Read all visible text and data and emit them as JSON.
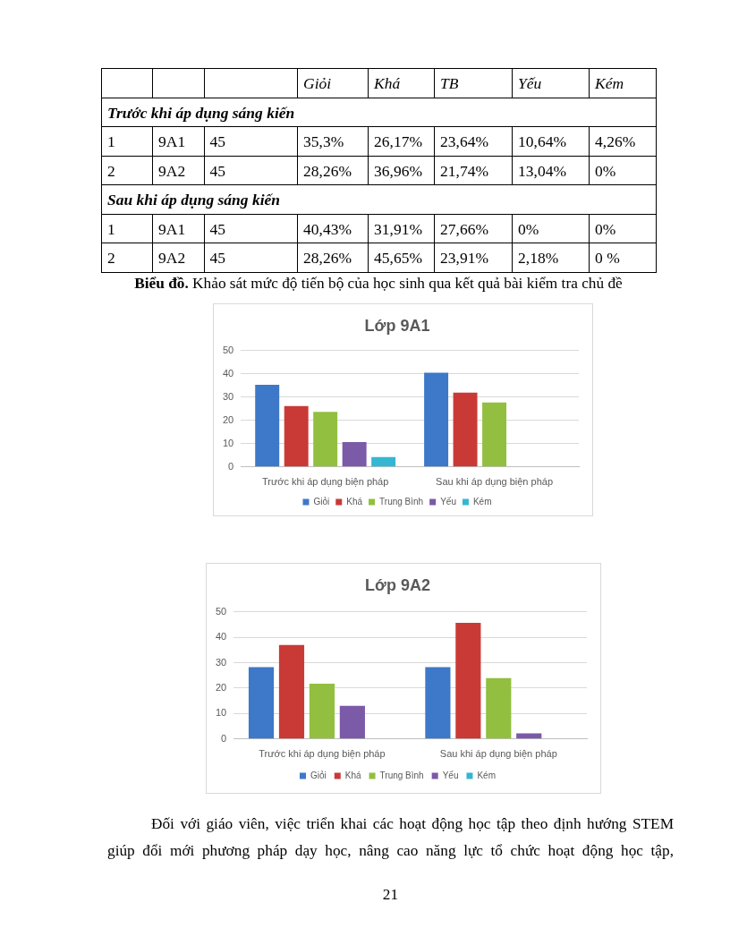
{
  "chart_data": [
    {
      "type": "other",
      "categories": [
        null,
        null,
        null,
        "Giỏi",
        "Khá",
        "TB",
        "Yếu",
        "Kém"
      ],
      "cell_labels": [
        [
          "Trước khi áp dụng sáng kiến",
          null,
          null,
          null,
          null,
          null,
          null,
          null
        ],
        [
          "1",
          "9A1",
          "45",
          "35,3%",
          "26,17%",
          "23,64%",
          "10,64%",
          "4,26%"
        ],
        [
          "2",
          "9A2",
          "45",
          "28,26%",
          "36,96%",
          "21,74%",
          "13,04%",
          "0%"
        ],
        [
          "Sau khi áp dụng sáng kiến",
          null,
          null,
          null,
          null,
          null,
          null,
          null
        ],
        [
          "1",
          "9A1",
          "45",
          "40,43%",
          "31,91%",
          "27,66%",
          "0%",
          "0%"
        ],
        [
          "2",
          "9A2",
          "45",
          "28,26%",
          "45,65%",
          "23,91%",
          "2,18%",
          "0 %"
        ]
      ],
      "annotations": [
        "Biểu đồ. Khảo sát mức độ tiến bộ của học sinh qua kết quả bài kiểm tra chủ đề"
      ]
    },
    {
      "type": "bar",
      "title": "Lớp 9A1",
      "categories": [
        "Trước khi áp dụng biện pháp",
        "Sau khi áp dụng biện pháp"
      ],
      "series": [
        {
          "name": "Giỏi",
          "color": "#3d78c9",
          "values": [
            35.3,
            40.43
          ]
        },
        {
          "name": "Khá",
          "color": "#c93a36",
          "values": [
            26.17,
            31.91
          ]
        },
        {
          "name": "Trung Bình",
          "color": "#92bf3f",
          "values": [
            23.64,
            27.66
          ]
        },
        {
          "name": "Yếu",
          "color": "#7b5aa8",
          "values": [
            10.64,
            0
          ]
        },
        {
          "name": "Kém",
          "color": "#35b6d1",
          "values": [
            4.26,
            0
          ]
        }
      ],
      "ylim": [
        0,
        50
      ],
      "yticks": [
        0,
        10,
        20,
        30,
        40,
        50
      ],
      "grid": "y",
      "legend": "bottom"
    },
    {
      "type": "bar",
      "title": "Lớp 9A2",
      "categories": [
        "Trước khi áp dụng biện pháp",
        "Sau khi áp dụng biện pháp"
      ],
      "series": [
        {
          "name": "Giỏi",
          "color": "#3d78c9",
          "values": [
            28.26,
            28.26
          ]
        },
        {
          "name": "Khá",
          "color": "#c93a36",
          "values": [
            36.96,
            45.65
          ]
        },
        {
          "name": "Trung Bình",
          "color": "#92bf3f",
          "values": [
            21.74,
            23.91
          ]
        },
        {
          "name": "Yếu",
          "color": "#7b5aa8",
          "values": [
            13.04,
            2.18
          ]
        },
        {
          "name": "Kém",
          "color": "#35b6d1",
          "values": [
            0,
            0
          ]
        }
      ],
      "ylim": [
        0,
        50
      ],
      "yticks": [
        0,
        10,
        20,
        30,
        40,
        50
      ],
      "grid": "y",
      "legend": "bottom",
      "annotations": [
        "Đối với giáo viên, việc triển khai các hoạt động học tập theo định hướng STEM giúp đổi mới phương pháp dạy học, nâng cao năng lực tổ chức hoạt động học tập,",
        "21"
      ]
    }
  ]
}
